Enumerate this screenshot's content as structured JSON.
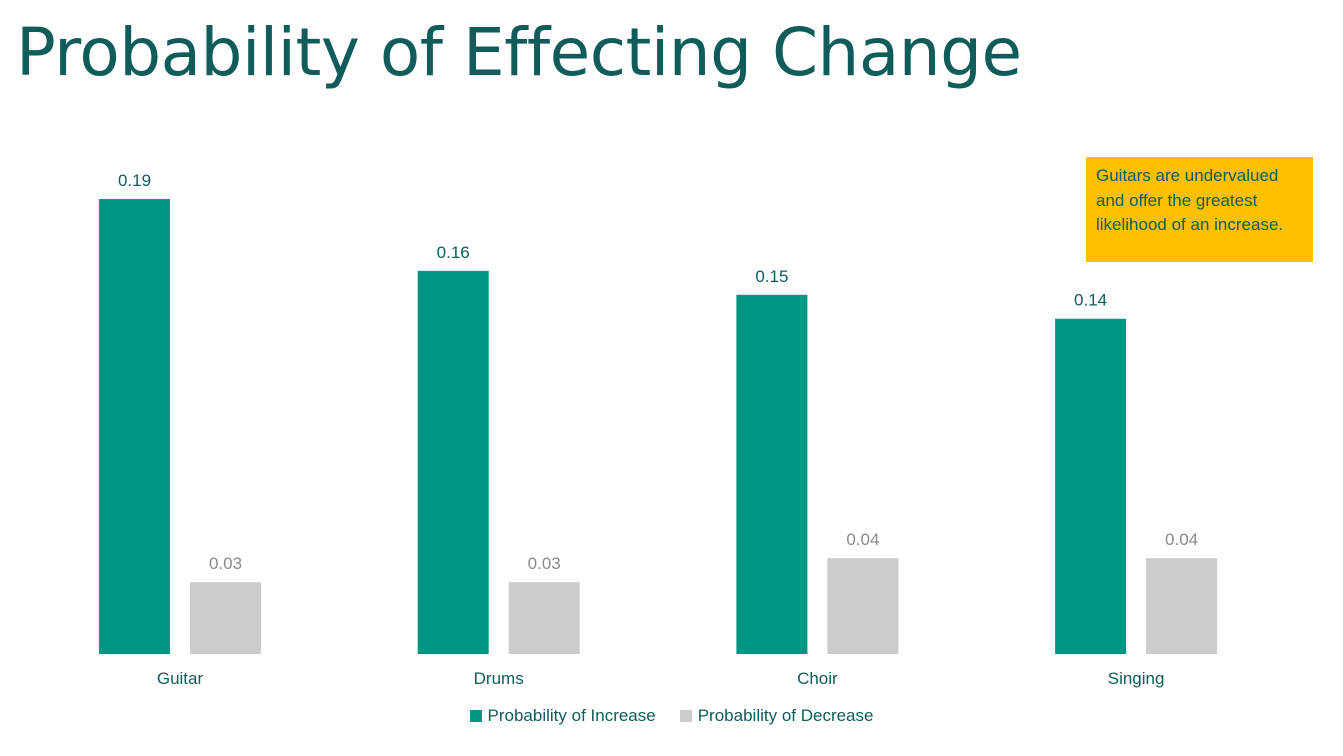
{
  "title": "Probability of Effecting Change",
  "callout_text": "Guitars are undervalued and offer the greatest likelihood of an increase.",
  "colors": {
    "increase": "#009684",
    "decrease": "#cccccc",
    "callout_bg": "#ffc000",
    "text": "#0f5c5a"
  },
  "chart_data": {
    "type": "bar",
    "categories": [
      "Guitar",
      "Drums",
      "Choir",
      "Singing"
    ],
    "series": [
      {
        "name": "Probability of Increase",
        "values": [
          0.19,
          0.16,
          0.15,
          0.14
        ],
        "color": "#009684"
      },
      {
        "name": "Probability of Decrease",
        "values": [
          0.03,
          0.03,
          0.04,
          0.04
        ],
        "color": "#cccccc"
      }
    ],
    "ylim": [
      0,
      0.19
    ],
    "grid": false,
    "legend_position": "bottom"
  }
}
